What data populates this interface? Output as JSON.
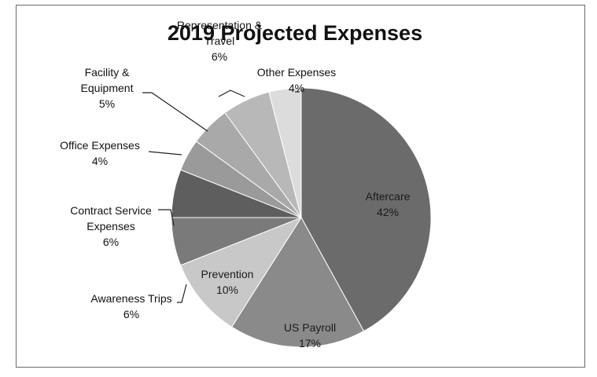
{
  "chart_data": {
    "type": "pie",
    "title": "2019 Projected Expenses",
    "slices": [
      {
        "label": "Aftercare",
        "value": 42,
        "display": "42%",
        "color": "#6b6b6b"
      },
      {
        "label": "US Payroll",
        "value": 17,
        "display": "17%",
        "color": "#8a8a8a"
      },
      {
        "label": "Prevention",
        "value": 10,
        "display": "10%",
        "color": "#c8c8c8"
      },
      {
        "label": "Awareness Trips",
        "value": 6,
        "display": "6%",
        "color": "#7a7a7a"
      },
      {
        "label": "Contract Service Expenses",
        "value": 6,
        "display": "6%",
        "color": "#5e5e5e"
      },
      {
        "label": "Office Expenses",
        "value": 4,
        "display": "4%",
        "color": "#9a9a9a"
      },
      {
        "label": "Facility & Equipment",
        "value": 5,
        "display": "5%",
        "color": "#a9a9a9"
      },
      {
        "label": "Representation & Travel",
        "value": 6,
        "display": "6%",
        "color": "#b8b8b8"
      },
      {
        "label": "Other Expenses",
        "value": 4,
        "display": "4%",
        "color": "#dcdcdc"
      }
    ],
    "legend": "none",
    "label_lines": {
      "Aftercare": [
        "Aftercare"
      ],
      "US Payroll": [
        "US Payroll"
      ],
      "Prevention": [
        "Prevention"
      ],
      "Awareness Trips": [
        "Awareness Trips"
      ],
      "Contract Service Expenses": [
        "Contract Service",
        "Expenses"
      ],
      "Office Expenses": [
        "Office Expenses"
      ],
      "Facility & Equipment": [
        "Facility &",
        "Equipment"
      ],
      "Representation & Travel": [
        "Representation &",
        "Travel"
      ],
      "Other Expenses": [
        "Other Expenses"
      ]
    }
  }
}
